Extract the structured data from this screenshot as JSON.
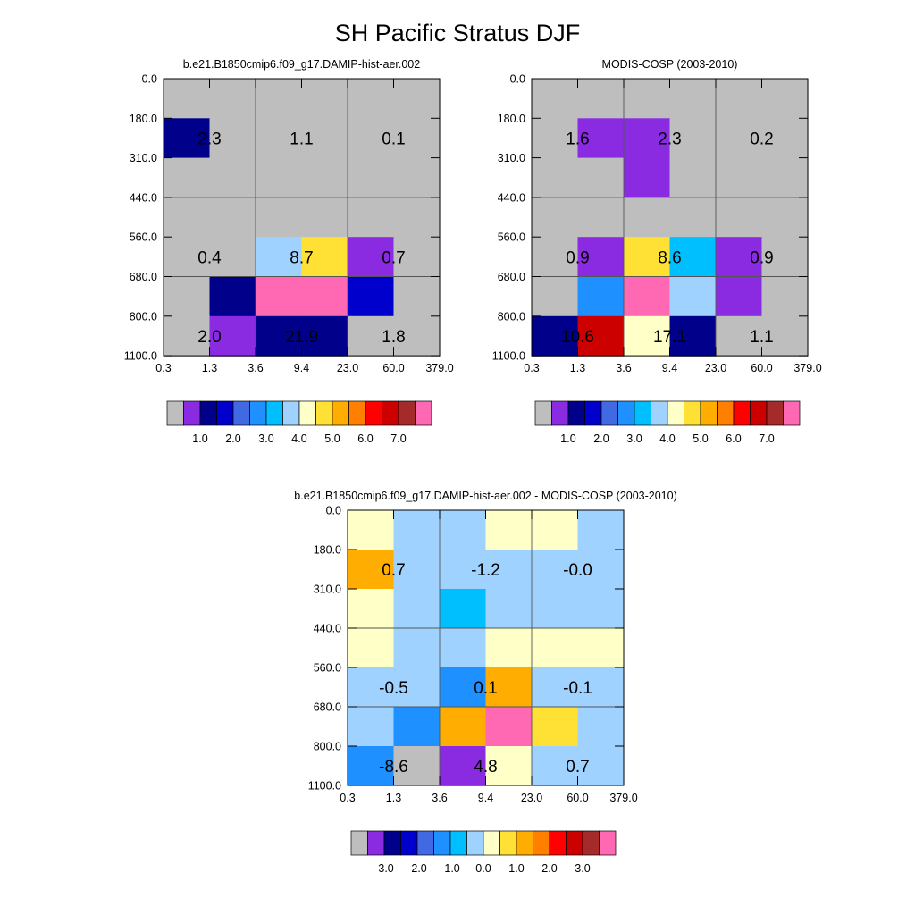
{
  "page": {
    "title": "SH Pacific Stratus DJF"
  },
  "palettes": {
    "absolute": [
      "#bebebe",
      "#8a2be2",
      "#00008b",
      "#0000cd",
      "#4169e1",
      "#1e90ff",
      "#00bfff",
      "#a0d2ff",
      "#ffffc8",
      "#ffe135",
      "#ffad00",
      "#ff7f00",
      "#ff0000",
      "#cd0000",
      "#a52a2a",
      "#ff69b4"
    ],
    "difference": [
      "#bebebe",
      "#8a2be2",
      "#00008b",
      "#0000cd",
      "#4169e1",
      "#1e90ff",
      "#00bfff",
      "#a0d2ff",
      "#ffffc8",
      "#ffe135",
      "#ffad00",
      "#ff7f00",
      "#ff0000",
      "#cd0000",
      "#a52a2a",
      "#ff69b4"
    ]
  },
  "chart_data": [
    {
      "type": "heatmap",
      "title": "b.e21.B1850cmip6.f09_g17.DAMIP-hist-aer.002",
      "x_tick_labels": [
        "0.3",
        "1.3",
        "3.6",
        "9.4",
        "23.0",
        "60.0",
        "379.0"
      ],
      "y_tick_labels": [
        "0.0",
        "180.0",
        "310.0",
        "440.0",
        "560.0",
        "680.0",
        "800.0",
        "1100.0"
      ],
      "grid_on": true,
      "palette": "absolute",
      "cells": [
        [
          0,
          0,
          0,
          0,
          0,
          0
        ],
        [
          2,
          0,
          0,
          0,
          0,
          0
        ],
        [
          0,
          0,
          0,
          0,
          0,
          0
        ],
        [
          0,
          0,
          0,
          0,
          0,
          0
        ],
        [
          0,
          0,
          7,
          9,
          1,
          0
        ],
        [
          0,
          2,
          15,
          15,
          3,
          0
        ],
        [
          0,
          1,
          2,
          2,
          0,
          0
        ]
      ],
      "annotations": [
        {
          "row": 1,
          "col": 1,
          "value": "2.3"
        },
        {
          "row": 1,
          "col": 3,
          "value": "1.1"
        },
        {
          "row": 1,
          "col": 5,
          "value": "0.1"
        },
        {
          "row": 4,
          "col": 1,
          "value": "0.4"
        },
        {
          "row": 4,
          "col": 3,
          "value": "8.7"
        },
        {
          "row": 4,
          "col": 5,
          "value": "0.7"
        },
        {
          "row": 6,
          "col": 1,
          "value": "2.0"
        },
        {
          "row": 6,
          "col": 3,
          "value": "21.9"
        },
        {
          "row": 6,
          "col": 5,
          "value": "1.8"
        }
      ],
      "colorbar": {
        "labels": [
          "1.0",
          "2.0",
          "3.0",
          "4.0",
          "5.0",
          "6.0",
          "7.0"
        ]
      }
    },
    {
      "type": "heatmap",
      "title": "MODIS-COSP (2003-2010)",
      "x_tick_labels": [
        "0.3",
        "1.3",
        "3.6",
        "9.4",
        "23.0",
        "60.0",
        "379.0"
      ],
      "y_tick_labels": [
        "0.0",
        "180.0",
        "310.0",
        "440.0",
        "560.0",
        "680.0",
        "800.0",
        "1100.0"
      ],
      "grid_on": true,
      "palette": "absolute",
      "cells": [
        [
          0,
          0,
          0,
          0,
          0,
          0
        ],
        [
          0,
          1,
          1,
          0,
          0,
          0
        ],
        [
          0,
          0,
          1,
          0,
          0,
          0
        ],
        [
          0,
          0,
          0,
          0,
          0,
          0
        ],
        [
          0,
          1,
          9,
          6,
          1,
          0
        ],
        [
          0,
          5,
          15,
          7,
          1,
          0
        ],
        [
          2,
          13,
          8,
          2,
          0,
          0
        ]
      ],
      "annotations": [
        {
          "row": 1,
          "col": 1,
          "value": "1.6"
        },
        {
          "row": 1,
          "col": 3,
          "value": "2.3"
        },
        {
          "row": 1,
          "col": 5,
          "value": "0.2"
        },
        {
          "row": 4,
          "col": 1,
          "value": "0.9"
        },
        {
          "row": 4,
          "col": 3,
          "value": "8.6"
        },
        {
          "row": 4,
          "col": 5,
          "value": "0.9"
        },
        {
          "row": 6,
          "col": 1,
          "value": "10.6"
        },
        {
          "row": 6,
          "col": 3,
          "value": "17.1"
        },
        {
          "row": 6,
          "col": 5,
          "value": "1.1"
        }
      ],
      "colorbar": {
        "labels": [
          "1.0",
          "2.0",
          "3.0",
          "4.0",
          "5.0",
          "6.0",
          "7.0"
        ]
      }
    },
    {
      "type": "heatmap",
      "title": "b.e21.B1850cmip6.f09_g17.DAMIP-hist-aer.002 - MODIS-COSP (2003-2010)",
      "x_tick_labels": [
        "0.3",
        "1.3",
        "3.6",
        "9.4",
        "23.0",
        "60.0",
        "379.0"
      ],
      "y_tick_labels": [
        "0.0",
        "180.0",
        "310.0",
        "440.0",
        "560.0",
        "680.0",
        "800.0",
        "1100.0"
      ],
      "grid_on": true,
      "palette": "difference",
      "cells": [
        [
          8,
          7,
          7,
          8,
          8,
          7
        ],
        [
          10,
          7,
          7,
          7,
          7,
          7
        ],
        [
          8,
          7,
          6,
          7,
          7,
          7
        ],
        [
          8,
          7,
          7,
          8,
          8,
          8
        ],
        [
          7,
          7,
          5,
          10,
          7,
          7
        ],
        [
          7,
          5,
          10,
          15,
          9,
          7
        ],
        [
          5,
          0,
          1,
          8,
          7,
          7
        ]
      ],
      "annotations": [
        {
          "row": 1,
          "col": 1,
          "value": "0.7"
        },
        {
          "row": 1,
          "col": 3,
          "value": "-1.2"
        },
        {
          "row": 1,
          "col": 5,
          "value": "-0.0"
        },
        {
          "row": 4,
          "col": 1,
          "value": "-0.5"
        },
        {
          "row": 4,
          "col": 3,
          "value": "0.1"
        },
        {
          "row": 4,
          "col": 5,
          "value": "-0.1"
        },
        {
          "row": 6,
          "col": 1,
          "value": "-8.6"
        },
        {
          "row": 6,
          "col": 3,
          "value": "4.8"
        },
        {
          "row": 6,
          "col": 5,
          "value": "0.7"
        }
      ],
      "colorbar": {
        "labels": [
          "-3.0",
          "-2.0",
          "-1.0",
          "0.0",
          "1.0",
          "2.0",
          "3.0"
        ]
      }
    }
  ]
}
